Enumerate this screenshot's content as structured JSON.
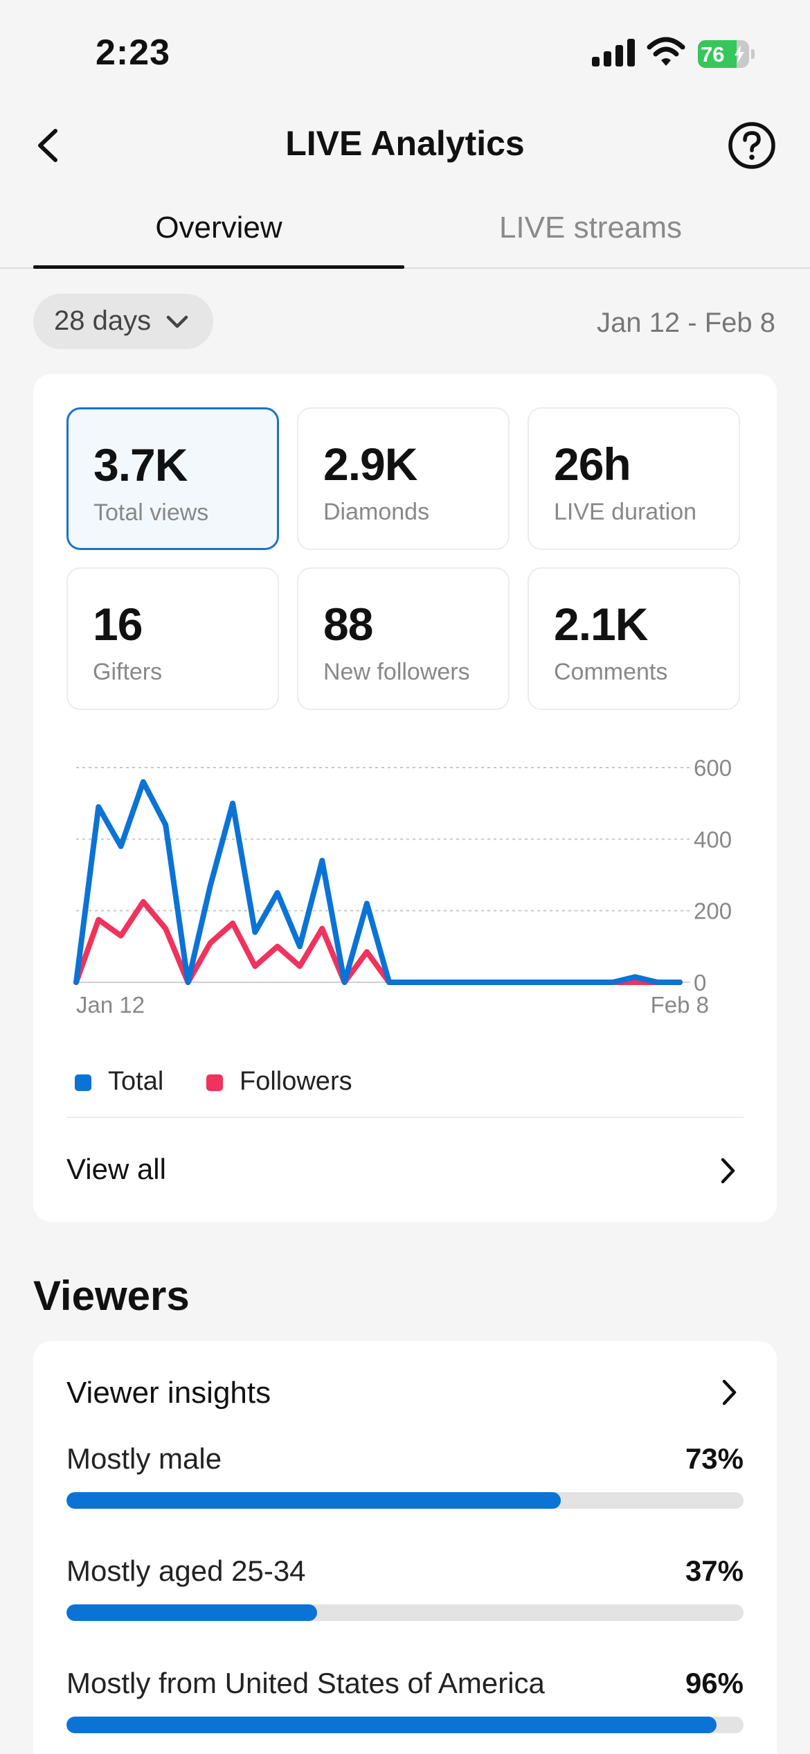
{
  "status_bar": {
    "time": "2:23",
    "battery": "76"
  },
  "header": {
    "title": "LIVE Analytics"
  },
  "tabs": [
    {
      "label": "Overview",
      "active": true
    },
    {
      "label": "LIVE streams",
      "active": false
    }
  ],
  "filter": {
    "period": "28 days",
    "date_range": "Jan 12 - Feb 8"
  },
  "metrics": [
    {
      "value": "3.7K",
      "label": "Total views",
      "selected": true
    },
    {
      "value": "2.9K",
      "label": "Diamonds",
      "selected": false
    },
    {
      "value": "26h",
      "label": "LIVE duration",
      "selected": false
    },
    {
      "value": "16",
      "label": "Gifters",
      "selected": false
    },
    {
      "value": "88",
      "label": "New followers",
      "selected": false
    },
    {
      "value": "2.1K",
      "label": "Comments",
      "selected": false
    }
  ],
  "chart_data": {
    "type": "line",
    "x_tick_labels": [
      "Jan 12",
      "Feb 8"
    ],
    "y_ticks": [
      "0",
      "200",
      "400",
      "600"
    ],
    "ylim": [
      0,
      600
    ],
    "grid": true,
    "legend_position": "bottom-left",
    "series": [
      {
        "name": "Total",
        "color": "#0b73d6",
        "values": [
          0,
          490,
          380,
          560,
          440,
          0,
          270,
          500,
          140,
          250,
          100,
          340,
          0,
          220,
          0,
          0,
          0,
          0,
          0,
          0,
          0,
          0,
          0,
          0,
          0,
          15,
          0,
          0
        ]
      },
      {
        "name": "Followers",
        "color": "#f0325c",
        "values": [
          0,
          175,
          130,
          225,
          150,
          0,
          110,
          165,
          45,
          100,
          45,
          150,
          0,
          85,
          0,
          0,
          0,
          0,
          0,
          0,
          0,
          0,
          0,
          0,
          0,
          0,
          0,
          0
        ]
      }
    ]
  },
  "view_all": {
    "label": "View all"
  },
  "viewers": {
    "section_title": "Viewers",
    "insights_title": "Viewer insights",
    "items": [
      {
        "label": "Mostly male",
        "percent": "73%",
        "fraction": 0.73
      },
      {
        "label": "Mostly aged 25-34",
        "percent": "37%",
        "fraction": 0.37
      },
      {
        "label": "Mostly from United States of America",
        "percent": "96%",
        "fraction": 0.96
      }
    ]
  },
  "colors": {
    "accent": "#0b73d6",
    "followers": "#f0325c",
    "battery": "#35c759"
  },
  "icons": {
    "back": "chevron-left-icon",
    "help": "question-circle-icon",
    "dropdown": "chevron-down-icon",
    "forward": "chevron-right-icon"
  }
}
